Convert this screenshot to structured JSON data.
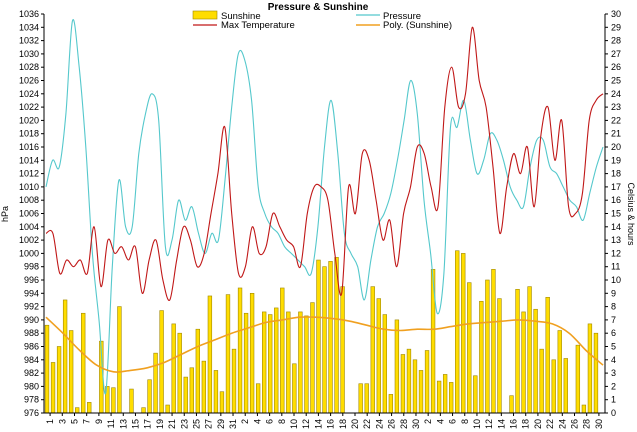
{
  "chart_data": {
    "type": "bar+line",
    "title": "Pressure & Sunshine",
    "ylabel_left": "hPa",
    "ylabel_right": "Celsius & hours",
    "ylim_left": [
      976,
      1036
    ],
    "ylim_right": [
      0,
      30
    ],
    "yticks_left": [
      976,
      978,
      980,
      982,
      984,
      986,
      988,
      990,
      992,
      994,
      996,
      998,
      1000,
      1002,
      1004,
      1006,
      1008,
      1010,
      1012,
      1014,
      1016,
      1018,
      1020,
      1022,
      1024,
      1026,
      1028,
      1030,
      1032,
      1034,
      1036
    ],
    "yticks_right": [
      0,
      1,
      2,
      3,
      4,
      5,
      6,
      7,
      8,
      9,
      10,
      11,
      12,
      13,
      14,
      15,
      16,
      17,
      18,
      19,
      20,
      21,
      22,
      23,
      24,
      25,
      26,
      27,
      28,
      29,
      30
    ],
    "xticks": [
      "1",
      "3",
      "5",
      "7",
      "9",
      "11",
      "13",
      "15",
      "17",
      "19",
      "21",
      "23",
      "25",
      "27",
      "29",
      "31",
      "2",
      "4",
      "6",
      "8",
      "10",
      "12",
      "14",
      "16",
      "18",
      "20",
      "22",
      "24",
      "26",
      "28",
      "30",
      "2",
      "4",
      "6",
      "8",
      "10",
      "12",
      "14",
      "16",
      "18",
      "20",
      "22",
      "24",
      "26",
      "28",
      "30"
    ],
    "grid": false,
    "legend": {
      "placement": "top-center",
      "entries": [
        {
          "label": "Sunshine",
          "kind": "bar",
          "color": "#ffdd00"
        },
        {
          "label": "Pressure",
          "kind": "line",
          "color": "#55c8cc"
        },
        {
          "label": "Max Temperature",
          "kind": "line",
          "color": "#c01818"
        },
        {
          "label": "Poly. (Sunshine)",
          "kind": "line",
          "color": "#f0a020"
        }
      ]
    },
    "series": [
      {
        "name": "Sunshine",
        "type": "bar",
        "axis": "right",
        "color": "#ffdd00",
        "values": [
          6.6,
          3.8,
          5.0,
          8.5,
          6.2,
          0.4,
          7.5,
          0.8,
          0,
          5.4,
          2.0,
          1.9,
          8.0,
          0,
          1.8,
          0,
          0.4,
          2.5,
          4.5,
          7.7,
          0.6,
          6.7,
          6.0,
          2.7,
          3.4,
          6.3,
          3.9,
          8.8,
          3.2,
          1.6,
          8.9,
          4.8,
          9.4,
          7.5,
          9.0,
          2.2,
          7.6,
          7.4,
          7.9,
          9.4,
          7.6,
          3.7,
          7.6,
          7.3,
          8.3,
          11.5,
          11.0,
          11.4,
          11.7,
          9.5,
          0,
          0,
          2.2,
          2.2,
          9.5,
          8.6,
          7.4,
          1.4,
          7.0,
          4.4,
          4.8,
          4.0,
          3.2,
          4.7,
          10.8,
          2.4,
          2.9,
          2.3,
          12.2,
          12.0,
          9.8,
          2.8,
          8.4,
          10.0,
          10.8,
          8.6,
          0,
          1.3,
          9.3,
          7.6,
          9.5,
          7.8,
          4.8,
          8.7,
          4.0,
          6.2,
          4.1,
          0,
          5.1,
          0.6,
          6.7,
          6.0,
          0
        ]
      },
      {
        "name": "Pressure",
        "type": "line",
        "axis": "left",
        "color": "#55c8cc",
        "values": [
          1010,
          1014,
          1013,
          1021,
          1035,
          1028,
          1016,
          1000,
          990,
          979,
          998,
          1011,
          1004,
          1004,
          1015,
          1021,
          1024,
          1020,
          1001,
          1002,
          1008,
          1005,
          1007,
          1003,
          1000,
          1003,
          1002,
          1011,
          1022,
          1030,
          1029,
          1023,
          1010,
          1006,
          1004,
          1003,
          1001,
          1000,
          999,
          998,
          997,
          1004,
          1016,
          1023,
          1015,
          1003,
          1000,
          998,
          993,
          999,
          1004,
          1006,
          1009,
          1014,
          1020,
          1026,
          1021,
          1008,
          1000,
          991,
          997,
          1019,
          1019,
          1023,
          1017,
          1012,
          1014,
          1018,
          1017,
          1014,
          1010,
          1008,
          1007,
          1013,
          1017,
          1017,
          1013,
          1012,
          1010,
          1008,
          1007,
          1005,
          1009,
          1013,
          1016
        ]
      },
      {
        "name": "Max Temperature",
        "type": "line",
        "axis": "left",
        "color": "#c01818",
        "values": [
          1003,
          1003,
          997,
          999,
          998,
          999,
          997,
          1004,
          995,
          1002,
          1000,
          1001,
          999,
          1001,
          994,
          999,
          1002,
          996,
          993,
          999,
          1004,
          1002,
          998,
          1000,
          1006,
          1012,
          1019,
          1006,
          997,
          998,
          1004,
          1000,
          1001,
          1006,
          1004,
          1002,
          1001,
          998,
          1006,
          1010,
          1010,
          1008,
          1000,
          994,
          1010,
          1006,
          1015,
          1014,
          1008,
          1002,
          1005,
          998,
          1006,
          1010,
          1016,
          1015,
          1010,
          1007,
          1022,
          1028,
          1022,
          1024,
          1034,
          1026,
          1022,
          1013,
          1003,
          1010,
          1015,
          1012,
          1016,
          1007,
          1018,
          1022,
          1014,
          1020,
          1007,
          1006,
          1009,
          1020,
          1023,
          1024
        ]
      },
      {
        "name": "Poly. (Sunshine)",
        "type": "line",
        "axis": "right",
        "color": "#f0a020",
        "values": [
          7.2,
          6.0,
          4.7,
          3.6,
          3.1,
          3.2,
          3.4,
          3.8,
          4.4,
          5.0,
          5.5,
          6.0,
          6.4,
          6.8,
          7.0,
          7.2,
          7.2,
          7.1,
          6.9,
          6.6,
          6.3,
          6.2,
          6.3,
          6.3,
          6.5,
          6.7,
          6.8,
          6.9,
          7.0,
          6.9,
          6.7,
          6.0,
          4.7,
          3.6
        ]
      }
    ]
  }
}
